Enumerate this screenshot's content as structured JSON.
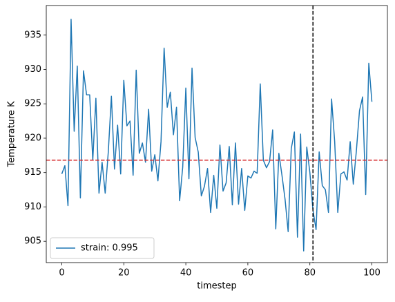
{
  "chart_data": {
    "type": "line",
    "xlabel": "timestep",
    "ylabel": "Temperature K",
    "x": [
      0,
      1,
      2,
      3,
      4,
      5,
      6,
      7,
      8,
      9,
      10,
      11,
      12,
      13,
      14,
      15,
      16,
      17,
      18,
      19,
      20,
      21,
      22,
      23,
      24,
      25,
      26,
      27,
      28,
      29,
      30,
      31,
      32,
      33,
      34,
      35,
      36,
      37,
      38,
      39,
      40,
      41,
      42,
      43,
      44,
      45,
      46,
      47,
      48,
      49,
      50,
      51,
      52,
      53,
      54,
      55,
      56,
      57,
      58,
      59,
      60,
      61,
      62,
      63,
      64,
      65,
      66,
      67,
      68,
      69,
      70,
      71,
      72,
      73,
      74,
      75,
      76,
      77,
      78,
      79,
      80,
      81,
      82,
      83,
      84,
      85,
      86,
      87,
      88,
      89,
      90,
      91,
      92,
      93,
      94,
      95,
      96,
      97,
      98,
      99,
      100
    ],
    "series": [
      {
        "name": "strain: 0.995",
        "color": "#1f77b4",
        "values": [
          914.8,
          916,
          910.2,
          937.3,
          921,
          930.5,
          911.3,
          929.8,
          926.3,
          926.3,
          916.8,
          925.8,
          912,
          916.5,
          912,
          918,
          926.1,
          915.5,
          921.9,
          914.8,
          928.4,
          921.8,
          922.5,
          914.6,
          929.9,
          917.8,
          919.3,
          916.5,
          924.2,
          915.2,
          917.6,
          913.8,
          919.5,
          933.1,
          924.5,
          926.7,
          920.5,
          924.5,
          910.9,
          915.8,
          927.3,
          914.1,
          930.2,
          920.1,
          918,
          911.6,
          913,
          915.6,
          909.2,
          914.6,
          909.8,
          919,
          912.3,
          913.5,
          918.8,
          910.3,
          919.3,
          910.4,
          915.6,
          909.5,
          914.5,
          914.2,
          915.2,
          914.9,
          927.9,
          916.8,
          915.7,
          916.6,
          921.2,
          906.8,
          917.8,
          914.6,
          911.1,
          906.4,
          918.5,
          920.9,
          905.6,
          920.6,
          903.6,
          918.7,
          915,
          909.5,
          906.7,
          918,
          913.1,
          912.5,
          909.2,
          925.7,
          919.5,
          909.2,
          914.8,
          915.1,
          913.9,
          919.5,
          913.3,
          918.2,
          924,
          926,
          911.8,
          930.9,
          925.3
        ]
      }
    ],
    "hline": {
      "value": 916.8,
      "color": "#d62728"
    },
    "vline": {
      "value": 81,
      "color": "#000000"
    },
    "xlim": [
      -5,
      105
    ],
    "ylim": [
      901.9,
      939.3
    ],
    "xticks": [
      0,
      20,
      40,
      60,
      80,
      100
    ],
    "yticks": [
      905,
      910,
      915,
      920,
      925,
      930,
      935
    ],
    "legend": "lower left",
    "grid": false
  }
}
